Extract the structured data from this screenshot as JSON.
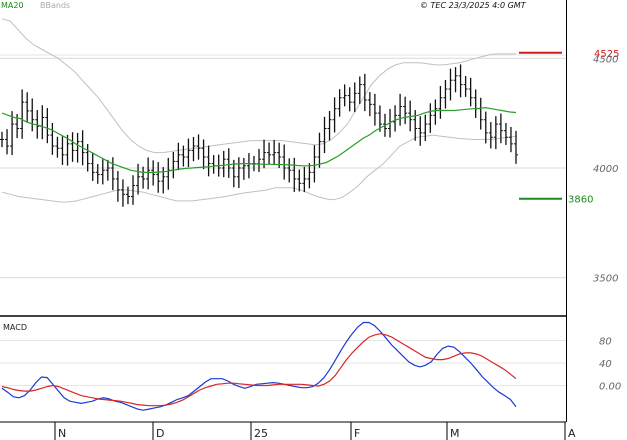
{
  "header": {
    "indicator_1": "MA20",
    "indicator_2": "BBands",
    "credit": "© TEC 23/3/2025 4:0 GMT"
  },
  "colors": {
    "ma20": "#2a9d2a",
    "bbands": "#c0c0c0",
    "bars": "#111111",
    "macd": "#1a3ad6",
    "signal": "#d62828",
    "resistance": "#cc1f1f",
    "support": "#1f8a1f",
    "grid": "#d8d8d8"
  },
  "chart_data": {
    "type": "ohlc",
    "price_panel": {
      "y_ticks": [
        "3500",
        "4000",
        "4500"
      ],
      "ylim": [
        3330,
        4720
      ],
      "resistance": {
        "value": 4525,
        "label": "4525"
      },
      "support": {
        "value": 3860,
        "label": "3860"
      },
      "x_labels": [
        "N",
        "D",
        "25",
        "F",
        "M",
        "A"
      ],
      "close": [
        4130,
        4100,
        4200,
        4180,
        4300,
        4260,
        4220,
        4190,
        4230,
        4150,
        4100,
        4090,
        4060,
        4110,
        4080,
        4120,
        4070,
        4020,
        3980,
        3970,
        3990,
        4000,
        3950,
        3900,
        3880,
        3870,
        3920,
        3960,
        3950,
        3990,
        3970,
        3940,
        3960,
        3990,
        4030,
        4060,
        4050,
        4080,
        4100,
        4090,
        4050,
        4020,
        4010,
        4000,
        4040,
        4000,
        3960,
        4000,
        4010,
        4020,
        4020,
        4040,
        4070,
        4060,
        4070,
        4050,
        4000,
        3990,
        3950,
        3930,
        3950,
        3980,
        4050,
        4120,
        4180,
        4220,
        4270,
        4320,
        4330,
        4300,
        4340,
        4380,
        4310,
        4290,
        4250,
        4200,
        4180,
        4210,
        4240,
        4280,
        4250,
        4220,
        4180,
        4160,
        4200,
        4240,
        4270,
        4320,
        4360,
        4400,
        4420,
        4380,
        4360,
        4320,
        4270,
        4220,
        4160,
        4140,
        4200,
        4170,
        4140,
        4110,
        4060
      ],
      "ma20": [
        4250,
        4240,
        4230,
        4225,
        4210,
        4200,
        4195,
        4185,
        4175,
        4160,
        4145,
        4130,
        4110,
        4095,
        4080,
        4065,
        4050,
        4035,
        4020,
        4010,
        4000,
        3990,
        3985,
        3980,
        3980,
        3980,
        3982,
        3985,
        3990,
        3995,
        3998,
        4000,
        4002,
        4004,
        4006,
        4010,
        4012,
        4015,
        4018,
        4020,
        4020,
        4018,
        4018,
        4017,
        4017,
        4016,
        4015,
        4014,
        4012,
        4010,
        4010,
        4012,
        4018,
        4025,
        4040,
        4055,
        4075,
        4095,
        4115,
        4135,
        4150,
        4170,
        4185,
        4200,
        4215,
        4225,
        4232,
        4235,
        4240,
        4250,
        4258,
        4262,
        4262,
        4262,
        4262,
        4265,
        4268,
        4270,
        4272,
        4275,
        4270,
        4265,
        4260,
        4255,
        4253
      ],
      "bb_upper": [
        4680,
        4670,
        4630,
        4590,
        4560,
        4540,
        4520,
        4500,
        4470,
        4440,
        4400,
        4360,
        4320,
        4270,
        4220,
        4170,
        4130,
        4100,
        4080,
        4070,
        4070,
        4075,
        4080,
        4085,
        4090,
        4095,
        4100,
        4105,
        4110,
        4115,
        4120,
        4125,
        4125,
        4125,
        4125,
        4125,
        4120,
        4115,
        4110,
        4105,
        4110,
        4130,
        4160,
        4200,
        4260,
        4320,
        4380,
        4420,
        4450,
        4470,
        4480,
        4480,
        4480,
        4475,
        4470,
        4470,
        4475,
        4480,
        4490,
        4500,
        4510,
        4518,
        4520,
        4520,
        4520
      ],
      "bb_lower": [
        3890,
        3880,
        3870,
        3865,
        3860,
        3855,
        3850,
        3845,
        3845,
        3850,
        3860,
        3870,
        3880,
        3890,
        3900,
        3900,
        3895,
        3890,
        3880,
        3870,
        3860,
        3850,
        3850,
        3850,
        3855,
        3860,
        3865,
        3870,
        3878,
        3885,
        3890,
        3895,
        3900,
        3910,
        3910,
        3910,
        3900,
        3885,
        3870,
        3860,
        3855,
        3865,
        3890,
        3920,
        3960,
        3990,
        4020,
        4060,
        4100,
        4120,
        4140,
        4145,
        4150,
        4145,
        4140,
        4135,
        4132,
        4130,
        4130,
        4130,
        4135,
        4140,
        4145
      ]
    },
    "macd_panel": {
      "label": "MACD",
      "y_ticks": [
        "0.00",
        "40",
        "80"
      ],
      "ylim": [
        -65,
        120
      ],
      "macd": [
        -5,
        -12,
        -20,
        -22,
        -18,
        -8,
        5,
        15,
        14,
        2,
        -10,
        -22,
        -28,
        -30,
        -32,
        -30,
        -28,
        -24,
        -22,
        -24,
        -28,
        -30,
        -34,
        -38,
        -42,
        -44,
        -42,
        -40,
        -38,
        -35,
        -30,
        -25,
        -22,
        -18,
        -10,
        -2,
        6,
        12,
        12,
        12,
        8,
        2,
        -2,
        -5,
        -2,
        2,
        3,
        4,
        5,
        4,
        2,
        0,
        -2,
        -4,
        -4,
        -2,
        4,
        14,
        28,
        45,
        62,
        78,
        92,
        104,
        112,
        112,
        106,
        96,
        84,
        72,
        62,
        52,
        42,
        36,
        33,
        36,
        42,
        55,
        66,
        70,
        68,
        60,
        50,
        40,
        28,
        16,
        6,
        -4,
        -12,
        -18,
        -25,
        -38
      ],
      "signal": [
        -2,
        -4,
        -7,
        -9,
        -10,
        -10,
        -8,
        -5,
        -2,
        0,
        -2,
        -6,
        -10,
        -14,
        -18,
        -20,
        -22,
        -24,
        -25,
        -26,
        -27,
        -28,
        -30,
        -32,
        -34,
        -35,
        -36,
        -36,
        -36,
        -35,
        -33,
        -30,
        -26,
        -20,
        -14,
        -8,
        -4,
        -1,
        2,
        3,
        4,
        4,
        3,
        2,
        1,
        0,
        0,
        0,
        1,
        2,
        2,
        2,
        2,
        2,
        1,
        0,
        -1,
        2,
        8,
        18,
        32,
        46,
        58,
        68,
        78,
        86,
        90,
        92,
        90,
        86,
        80,
        74,
        68,
        62,
        56,
        50,
        48,
        46,
        46,
        48,
        52,
        56,
        58,
        58,
        56,
        52,
        46,
        40,
        34,
        28,
        20,
        12
      ]
    }
  }
}
